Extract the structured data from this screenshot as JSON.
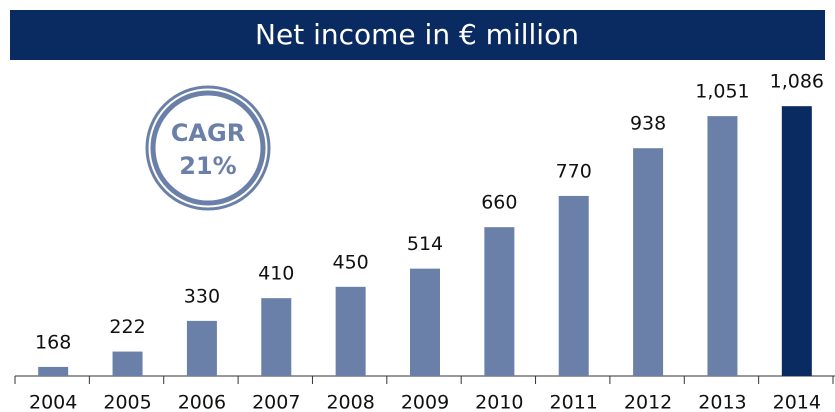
{
  "chart_data": {
    "type": "bar",
    "title": "Net income in € million",
    "categories": [
      "2004",
      "2005",
      "2006",
      "2007",
      "2008",
      "2009",
      "2010",
      "2011",
      "2012",
      "2013",
      "2014"
    ],
    "values": [
      168,
      222,
      330,
      410,
      450,
      514,
      660,
      770,
      938,
      1051,
      1086
    ],
    "value_labels": [
      "168",
      "222",
      "330",
      "410",
      "450",
      "514",
      "660",
      "770",
      "938",
      "1,051",
      "1,086"
    ],
    "colors": [
      "#6a80a8",
      "#6a80a8",
      "#6a80a8",
      "#6a80a8",
      "#6a80a8",
      "#6a80a8",
      "#6a80a8",
      "#6a80a8",
      "#6a80a8",
      "#6a80a8",
      "#0a2a62"
    ],
    "ylim": [
      136,
      1150
    ],
    "annotations": [
      "CAGR",
      "21%"
    ]
  }
}
